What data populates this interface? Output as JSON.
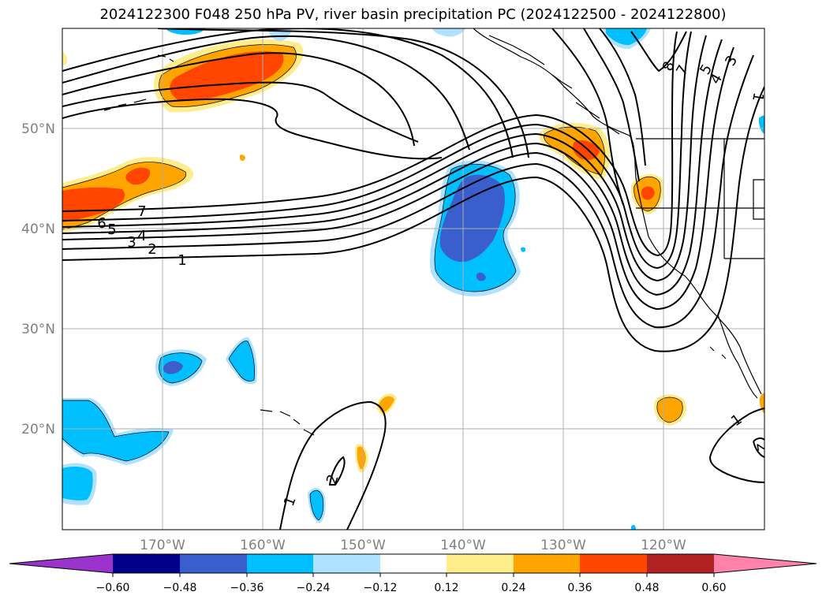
{
  "title": "2024122300 F048 250 hPa PV, river basin precipitation PC (2024122500 - 2024122800)",
  "latitude_labels": [
    "50°N",
    "40°N",
    "30°N",
    "20°N"
  ],
  "longitude_labels": [
    "170°W",
    "160°W",
    "150°W",
    "140°W",
    "130°W",
    "120°W"
  ],
  "pv_contour_labels": [
    "1",
    "2",
    "3",
    "4",
    "5",
    "6",
    "7",
    "8",
    "1",
    "2",
    "1",
    "2",
    "4",
    "5",
    "7",
    "3",
    "1"
  ],
  "colorbar": {
    "tick_labels": [
      "−0.60",
      "−0.48",
      "−0.36",
      "−0.24",
      "−0.12",
      "0.12",
      "0.24",
      "0.36",
      "0.48",
      "0.60"
    ],
    "colors": {
      "under": "#9933cc",
      "neg_060_048": "#00008b",
      "neg_048_036": "#3a5fcd",
      "neg_036_024": "#00bfff",
      "neg_024_012": "#b0e2ff",
      "neutral": "#ffffff",
      "pos_012_024": "#ffec8b",
      "pos_024_036": "#ffa500",
      "pos_036_048": "#ff4500",
      "pos_048_060": "#b22222",
      "over": "#ff82ab"
    }
  }
}
